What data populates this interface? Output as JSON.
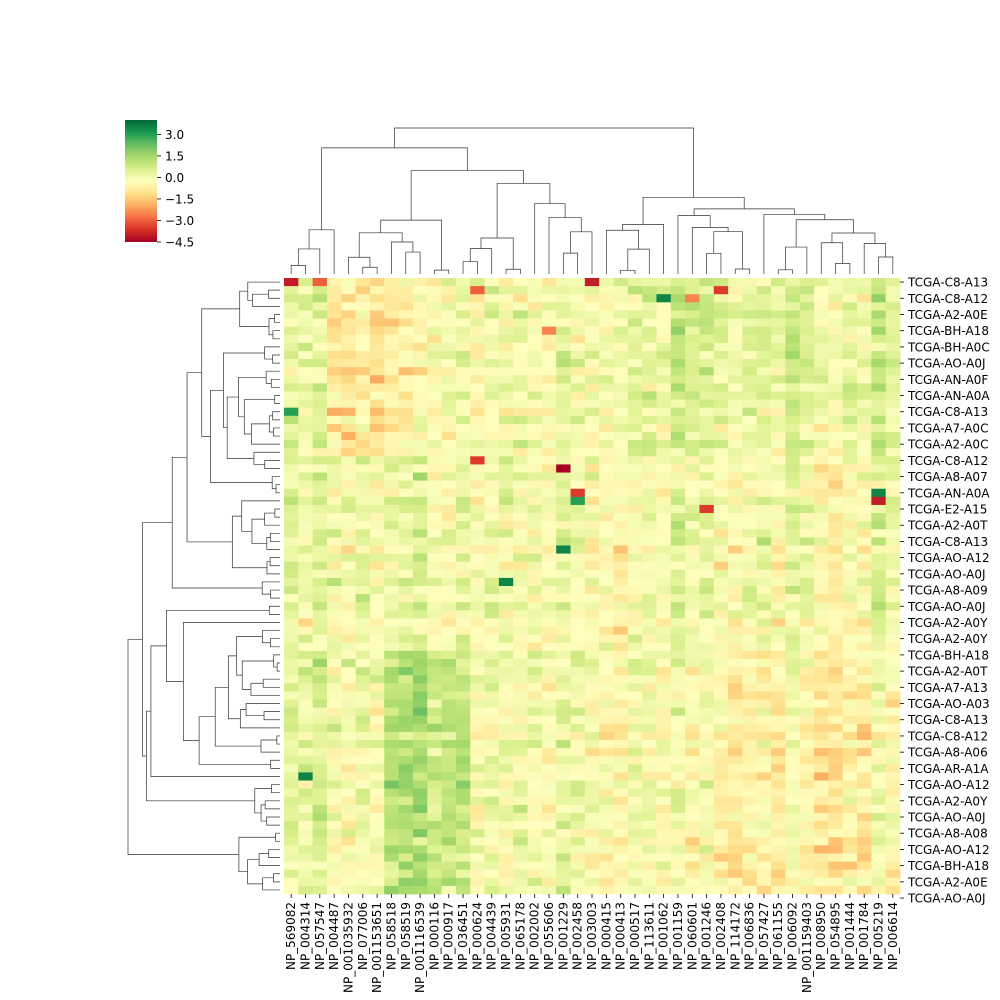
{
  "chart_data": {
    "type": "heatmap",
    "title": "",
    "xlabel": "",
    "ylabel": "",
    "colormap": "RdYlGn",
    "vmin": -4.5,
    "vmax": 4.0,
    "colorbar_ticks": [
      "3.0",
      "1.5",
      "0.0",
      "−1.5",
      "−3.0",
      "−4.5"
    ],
    "colorbar_tick_values": [
      3.0,
      1.5,
      0.0,
      -1.5,
      -3.0,
      -4.5
    ],
    "columns": [
      "NP_569082",
      "NP_004314",
      "NP_057547",
      "NP_004487",
      "NP_001035932",
      "NP_077006",
      "NP_001153651",
      "NP_058518",
      "NP_058519",
      "NP_001116539",
      "NP_000116",
      "NP_000917",
      "NP_036451",
      "NP_000624",
      "NP_004439",
      "NP_005931",
      "NP_065178",
      "NP_002002",
      "NP_055606",
      "NP_001229",
      "NP_002458",
      "NP_003003",
      "NP_000415",
      "NP_000413",
      "NP_000517",
      "NP_113611",
      "NP_001062",
      "NP_001159",
      "NP_060601",
      "NP_001246",
      "NP_002408",
      "NP_114172",
      "NP_006836",
      "NP_057427",
      "NP_061155",
      "NP_006092",
      "NP_001159403",
      "NP_008950",
      "NP_054895",
      "NP_001444",
      "NP_001784",
      "NP_005219",
      "NP_006614"
    ],
    "row_labels": [
      "TCGA-C8-A13",
      "TCGA-C8-A12",
      "TCGA-A2-A0E",
      "TCGA-BH-A18",
      "TCGA-BH-A0C",
      "TCGA-AO-A0J",
      "TCGA-AN-A0F",
      "TCGA-AN-A0A",
      "TCGA-C8-A13",
      "TCGA-A7-A0C",
      "TCGA-A2-A0C",
      "TCGA-C8-A12",
      "TCGA-A8-A07",
      "TCGA-AN-A0A",
      "TCGA-E2-A15",
      "TCGA-A2-A0T",
      "TCGA-C8-A13",
      "TCGA-AO-A12",
      "TCGA-AO-A0J",
      "TCGA-A8-A09",
      "TCGA-AO-A0J",
      "TCGA-A2-A0Y",
      "TCGA-A2-A0Y",
      "TCGA-BH-A18",
      "TCGA-A2-A0T",
      "TCGA-A7-A13",
      "TCGA-AO-A03",
      "TCGA-C8-A13",
      "TCGA-C8-A12",
      "TCGA-A8-A06",
      "TCGA-AR-A1A",
      "TCGA-AO-A12",
      "TCGA-A2-A0Y",
      "TCGA-AO-A0J",
      "TCGA-A8-A08",
      "TCGA-AO-A12",
      "TCGA-BH-A18",
      "TCGA-A2-A0E",
      "TCGA-AO-A0J"
    ],
    "n_rows": 76,
    "n_cols": 43,
    "labelled_every": 2,
    "row_dendrogram": true,
    "col_dendrogram": true,
    "notable_cells": [
      {
        "row": 0,
        "col": 0,
        "value": -4.0
      },
      {
        "row": 0,
        "col": 2,
        "value": -3.0
      },
      {
        "row": 0,
        "col": 21,
        "value": -4.0
      },
      {
        "row": 1,
        "col": 30,
        "value": -3.5
      },
      {
        "row": 1,
        "col": 13,
        "value": -3.0
      },
      {
        "row": 2,
        "col": 26,
        "value": 3.5
      },
      {
        "row": 2,
        "col": 28,
        "value": -2.5
      },
      {
        "row": 4,
        "col": 43,
        "value": 3.8
      },
      {
        "row": 6,
        "col": 18,
        "value": -2.5
      },
      {
        "row": 16,
        "col": 0,
        "value": 3.0
      },
      {
        "row": 22,
        "col": 13,
        "value": -3.5
      },
      {
        "row": 23,
        "col": 19,
        "value": -4.5
      },
      {
        "row": 26,
        "col": 20,
        "value": -3.5
      },
      {
        "row": 27,
        "col": 20,
        "value": 3.0
      },
      {
        "row": 26,
        "col": 41,
        "value": 3.5
      },
      {
        "row": 27,
        "col": 41,
        "value": -4.0
      },
      {
        "row": 28,
        "col": 29,
        "value": -3.5
      },
      {
        "row": 33,
        "col": 19,
        "value": 3.5
      },
      {
        "row": 37,
        "col": 15,
        "value": 3.5
      },
      {
        "row": 61,
        "col": 1,
        "value": 3.5
      }
    ]
  }
}
